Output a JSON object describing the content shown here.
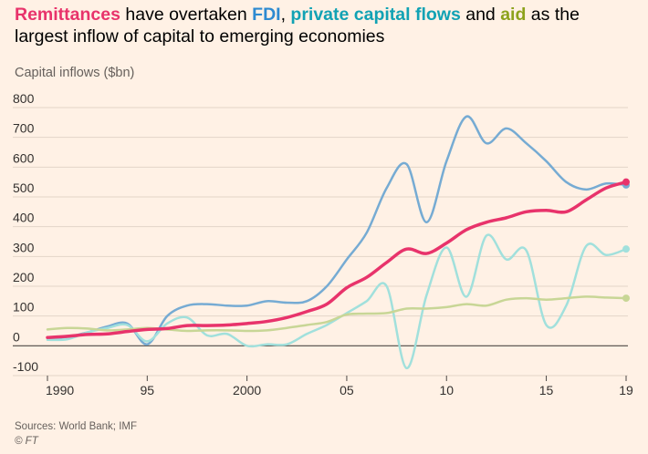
{
  "title": {
    "remittances": "Remittances",
    "part1": " have overtaken ",
    "fdi": "FDI",
    "part2": ", ",
    "private": "private capital flows",
    "part3": " and ",
    "aid": "aid",
    "part4": " as the largest inflow of capital to emerging economies"
  },
  "subtitle": "Capital inflows ($bn)",
  "sources": "Sources: World Bank; IMF",
  "copyright": "© FT",
  "colors": {
    "remittances": "#e8336b",
    "fdi": "#2d8ad1",
    "private": "#11a2b4",
    "aid": "#8da21c"
  },
  "chart_data": {
    "type": "line",
    "ylabel": "Capital inflows ($bn)",
    "ylim": [
      -100,
      800
    ],
    "xlim": [
      1990,
      2019
    ],
    "yticks": [
      -100,
      0,
      100,
      200,
      300,
      400,
      500,
      600,
      700,
      800
    ],
    "xticks": [
      {
        "value": 1990,
        "label": "1990"
      },
      {
        "value": 1995,
        "label": "95"
      },
      {
        "value": 2000,
        "label": "2000"
      },
      {
        "value": 2005,
        "label": "05"
      },
      {
        "value": 2010,
        "label": "10"
      },
      {
        "value": 2015,
        "label": "15"
      },
      {
        "value": 2019,
        "label": "19"
      }
    ],
    "grid": true,
    "x": [
      1990,
      1991,
      1992,
      1993,
      1994,
      1995,
      1996,
      1997,
      1998,
      1999,
      2000,
      2001,
      2002,
      2003,
      2004,
      2005,
      2006,
      2007,
      2008,
      2009,
      2010,
      2011,
      2012,
      2013,
      2014,
      2015,
      2016,
      2017,
      2018,
      2019
    ],
    "series": [
      {
        "key": "fdi",
        "values": [
          25,
          30,
          45,
          65,
          75,
          5,
          100,
          135,
          140,
          135,
          135,
          150,
          145,
          150,
          200,
          290,
          380,
          530,
          610,
          415,
          620,
          770,
          680,
          730,
          680,
          620,
          550,
          525,
          545,
          540
        ],
        "color": "#76abd3",
        "width": 2.5,
        "endpoint": true
      },
      {
        "key": "private",
        "values": [
          20,
          22,
          45,
          60,
          70,
          15,
          75,
          95,
          35,
          40,
          0,
          5,
          5,
          40,
          70,
          110,
          150,
          200,
          -75,
          170,
          330,
          165,
          370,
          290,
          320,
          70,
          135,
          335,
          305,
          325
        ],
        "color": "#a1e0dc",
        "width": 2.5,
        "endpoint": true
      },
      {
        "key": "aid",
        "values": [
          55,
          60,
          58,
          52,
          55,
          60,
          55,
          50,
          52,
          52,
          50,
          52,
          60,
          70,
          80,
          105,
          108,
          110,
          125,
          125,
          130,
          140,
          135,
          155,
          160,
          155,
          160,
          165,
          162,
          160
        ],
        "color": "#c8d696",
        "width": 2.5,
        "endpoint": true
      },
      {
        "key": "remittances",
        "values": [
          28,
          32,
          38,
          40,
          48,
          55,
          58,
          68,
          68,
          70,
          75,
          82,
          95,
          115,
          140,
          195,
          230,
          280,
          325,
          310,
          345,
          390,
          415,
          430,
          450,
          455,
          450,
          490,
          530,
          550
        ],
        "color": "#e8336b",
        "width": 3.5,
        "endpoint": true
      }
    ]
  }
}
